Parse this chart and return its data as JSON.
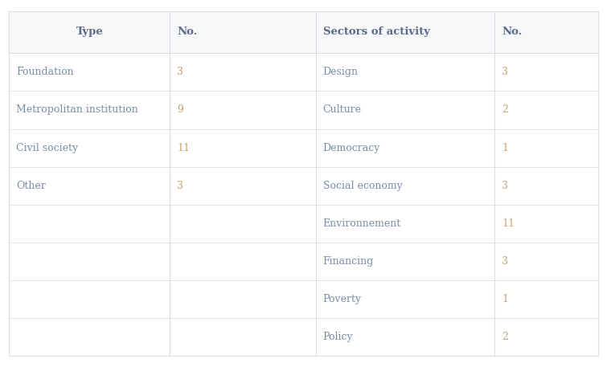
{
  "header": [
    "Type",
    "No.",
    "Sectors of activity",
    "No."
  ],
  "left_rows": [
    [
      "Foundation",
      "3"
    ],
    [
      "Metropolitan institution",
      "9"
    ],
    [
      "Civil society",
      "11"
    ],
    [
      "Other",
      "3"
    ],
    [
      "",
      ""
    ],
    [
      "",
      ""
    ],
    [
      "",
      ""
    ],
    [
      "",
      ""
    ]
  ],
  "right_rows": [
    [
      "Design",
      "3"
    ],
    [
      "Culture",
      "2"
    ],
    [
      "Democracy",
      "1"
    ],
    [
      "Social economy",
      "3"
    ],
    [
      "Environnement",
      "11"
    ],
    [
      "Financing",
      "3"
    ],
    [
      "Poverty",
      "1"
    ],
    [
      "Policy",
      "2"
    ]
  ],
  "header_text_color": "#5a6a8a",
  "data_text_color": "#7a8da8",
  "number_color": "#c8a070",
  "bg_color": "#ffffff",
  "header_bg": "#f7f8fa",
  "line_color": "#d8dde6",
  "header_fontsize": 9.5,
  "data_fontsize": 9.0,
  "fig_width": 7.55,
  "fig_height": 4.57
}
